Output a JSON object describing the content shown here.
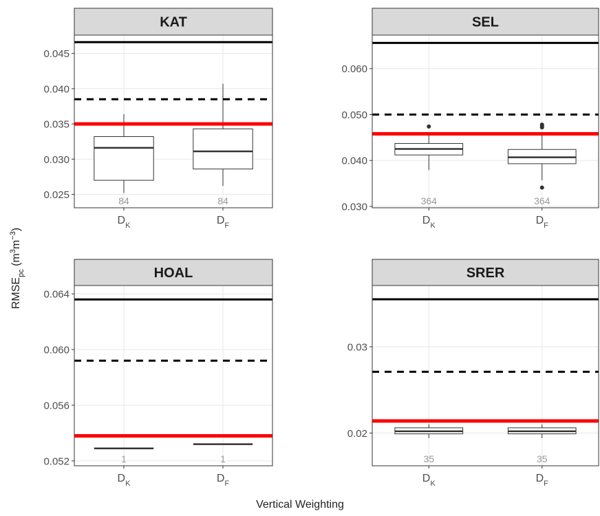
{
  "y_label": [
    {
      "text": "RMSE"
    },
    {
      "text": "pc",
      "shift": "sub"
    },
    {
      "text": " (m"
    },
    {
      "text": "3",
      "shift": "super"
    },
    {
      "text": "m"
    },
    {
      "text": "−3",
      "shift": "super"
    },
    {
      "text": ")"
    }
  ],
  "x_label": "Vertical Weighting",
  "chart_data": [
    {
      "type": "box",
      "title": "KAT",
      "categories": [
        {
          "base": "D",
          "sub": "K"
        },
        {
          "base": "D",
          "sub": "F"
        }
      ],
      "ylim": [
        0.0231,
        0.0476
      ],
      "yticks": [
        0.025,
        0.03,
        0.035,
        0.04,
        0.045
      ],
      "yticklabels": [
        "0.025",
        "0.030",
        "0.035",
        "0.040",
        "0.045"
      ],
      "boxes": [
        {
          "low": 0.0252,
          "q1": 0.027,
          "median": 0.0316,
          "q3": 0.0332,
          "high": 0.0364,
          "outliers": []
        },
        {
          "low": 0.0262,
          "q1": 0.0286,
          "median": 0.0311,
          "q3": 0.0343,
          "high": 0.0407,
          "outliers": []
        }
      ],
      "n": [
        84,
        84
      ],
      "hlines": [
        {
          "value": 0.0466,
          "color": "#000000",
          "style": "solid"
        },
        {
          "value": 0.0385,
          "color": "#000000",
          "style": "dashed"
        },
        {
          "value": 0.035,
          "color": "#ff0000",
          "style": "solid"
        }
      ],
      "grid": true
    },
    {
      "type": "box",
      "title": "SEL",
      "categories": [
        {
          "base": "D",
          "sub": "K"
        },
        {
          "base": "D",
          "sub": "F"
        }
      ],
      "ylim": [
        0.0297,
        0.0673
      ],
      "yticks": [
        0.03,
        0.04,
        0.05,
        0.06
      ],
      "yticklabels": [
        "0.030",
        "0.040",
        "0.050",
        "0.060"
      ],
      "boxes": [
        {
          "low": 0.0379,
          "q1": 0.0412,
          "median": 0.0425,
          "q3": 0.0437,
          "high": 0.0458,
          "outliers": [
            0.0474
          ]
        },
        {
          "low": 0.0357,
          "q1": 0.0393,
          "median": 0.0407,
          "q3": 0.0424,
          "high": 0.0462,
          "outliers": [
            0.0478,
            0.0475,
            0.0472,
            0.0341
          ]
        }
      ],
      "n": [
        364,
        364
      ],
      "hlines": [
        {
          "value": 0.0656,
          "color": "#000000",
          "style": "solid"
        },
        {
          "value": 0.05,
          "color": "#000000",
          "style": "dashed"
        },
        {
          "value": 0.0458,
          "color": "#ff0000",
          "style": "solid"
        }
      ],
      "grid": true
    },
    {
      "type": "box",
      "title": "HOAL",
      "categories": [
        {
          "base": "D",
          "sub": "K"
        },
        {
          "base": "D",
          "sub": "F"
        }
      ],
      "ylim": [
        0.05165,
        0.0646
      ],
      "yticks": [
        0.052,
        0.056,
        0.06,
        0.064
      ],
      "yticklabels": [
        "0.052",
        "0.056",
        "0.060",
        "0.064"
      ],
      "boxes": [
        {
          "low": 0.0529,
          "q1": 0.0529,
          "median": 0.0529,
          "q3": 0.0529,
          "high": 0.0529,
          "outliers": []
        },
        {
          "low": 0.0532,
          "q1": 0.0532,
          "median": 0.0532,
          "q3": 0.0532,
          "high": 0.0532,
          "outliers": []
        }
      ],
      "n": [
        1,
        1
      ],
      "hlines": [
        {
          "value": 0.0636,
          "color": "#000000",
          "style": "solid"
        },
        {
          "value": 0.0592,
          "color": "#000000",
          "style": "dashed"
        },
        {
          "value": 0.0538,
          "color": "#ff0000",
          "style": "solid"
        }
      ],
      "grid": true
    },
    {
      "type": "box",
      "title": "SRER",
      "categories": [
        {
          "base": "D",
          "sub": "K"
        },
        {
          "base": "D",
          "sub": "F"
        }
      ],
      "ylim": [
        0.0162,
        0.0371
      ],
      "yticks": [
        0.02,
        0.03
      ],
      "yticklabels": [
        "0.02",
        "0.03"
      ],
      "boxes": [
        {
          "low": 0.0194,
          "q1": 0.0199,
          "median": 0.0202,
          "q3": 0.0206,
          "high": 0.021,
          "outliers": []
        },
        {
          "low": 0.0194,
          "q1": 0.0199,
          "median": 0.0202,
          "q3": 0.0206,
          "high": 0.021,
          "outliers": []
        }
      ],
      "n": [
        35,
        35
      ],
      "hlines": [
        {
          "value": 0.0355,
          "color": "#000000",
          "style": "solid"
        },
        {
          "value": 0.0271,
          "color": "#000000",
          "style": "dashed"
        },
        {
          "value": 0.0214,
          "color": "#ff0000",
          "style": "solid"
        }
      ],
      "grid": true
    }
  ]
}
